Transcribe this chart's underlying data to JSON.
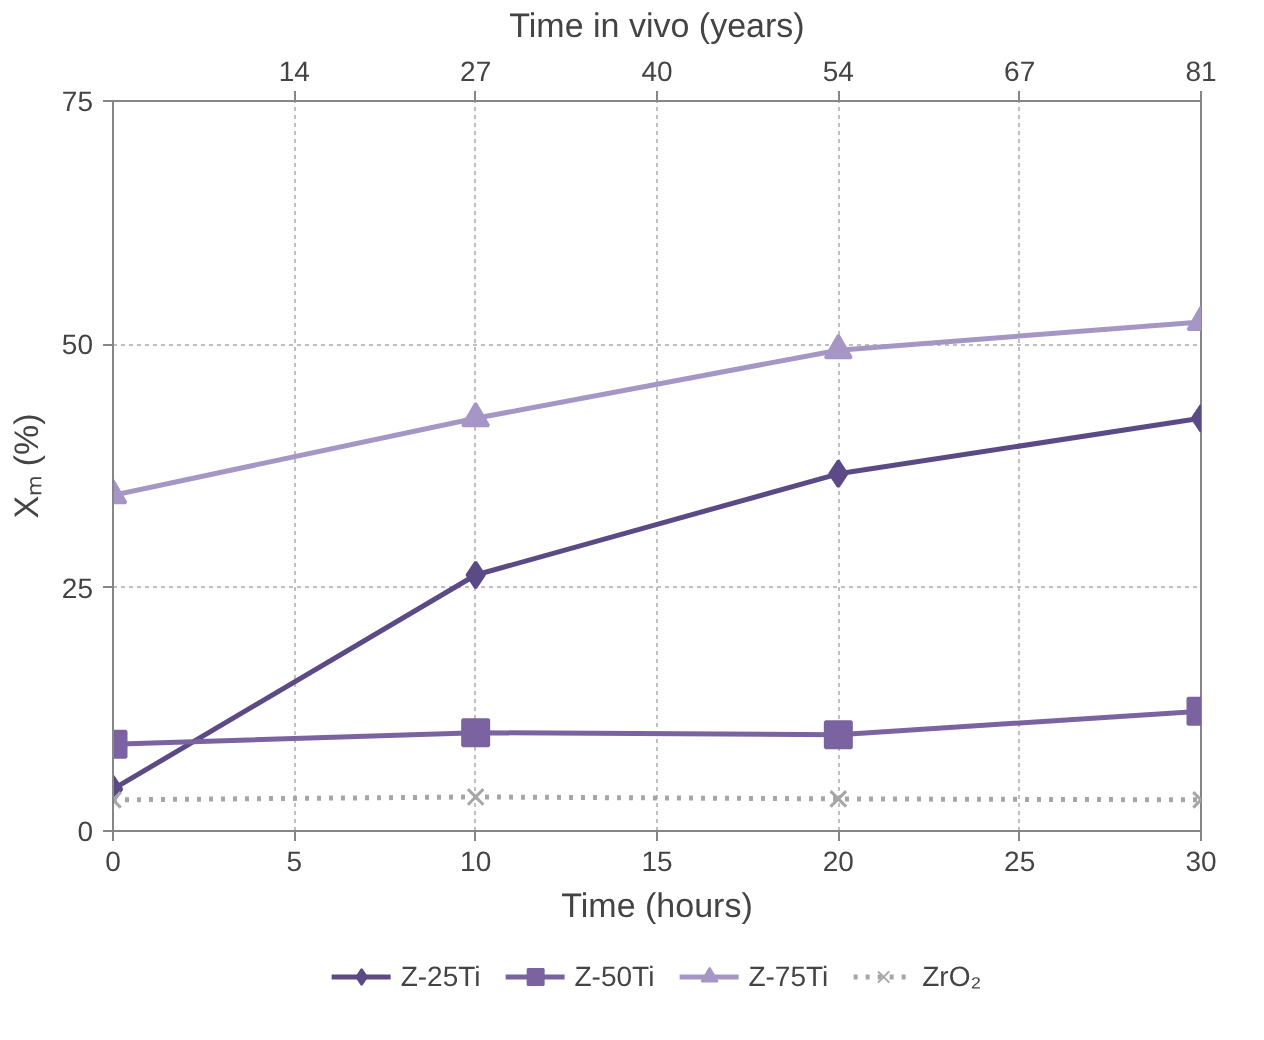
{
  "chart_data": {
    "type": "line",
    "xlabel": "Time (hours)",
    "ylabel": "Xₘ (%)",
    "x2label": "Time in vivo (years)",
    "x": [
      0,
      10,
      20,
      30
    ],
    "xlim": [
      0,
      30
    ],
    "xticks": [
      0,
      5,
      10,
      15,
      20,
      25,
      30
    ],
    "x2lim": [
      0,
      81
    ],
    "x2ticks": [
      {
        "value": 13.5,
        "label": "14"
      },
      {
        "value": 27,
        "label": "27"
      },
      {
        "value": 40.5,
        "label": "40"
      },
      {
        "value": 54,
        "label": "54"
      },
      {
        "value": 67.5,
        "label": "67"
      },
      {
        "value": 81,
        "label": "81"
      }
    ],
    "ylim": [
      0,
      75
    ],
    "yticks": [
      0,
      25,
      50,
      75
    ],
    "grid": true,
    "legend": "bottom",
    "series": [
      {
        "name": "Z-25Ti",
        "color": "#5b4a86",
        "marker": "diamond",
        "line_style": "solid",
        "values": [
          4.3,
          26.3,
          36.7,
          42.4
        ]
      },
      {
        "name": "Z-50Ti",
        "color": "#7a63a0",
        "marker": "square",
        "line_style": "solid",
        "values": [
          8.9,
          10.1,
          9.9,
          12.3
        ]
      },
      {
        "name": "Z-75Ti",
        "color": "#a596c6",
        "marker": "triangle",
        "line_style": "solid",
        "values": [
          34.5,
          42.4,
          49.4,
          52.3
        ]
      },
      {
        "name": "ZrO₂",
        "color": "#a6a6a6",
        "marker": "cross",
        "line_style": "dotted",
        "values": [
          3.2,
          3.5,
          3.3,
          3.2
        ]
      }
    ]
  }
}
